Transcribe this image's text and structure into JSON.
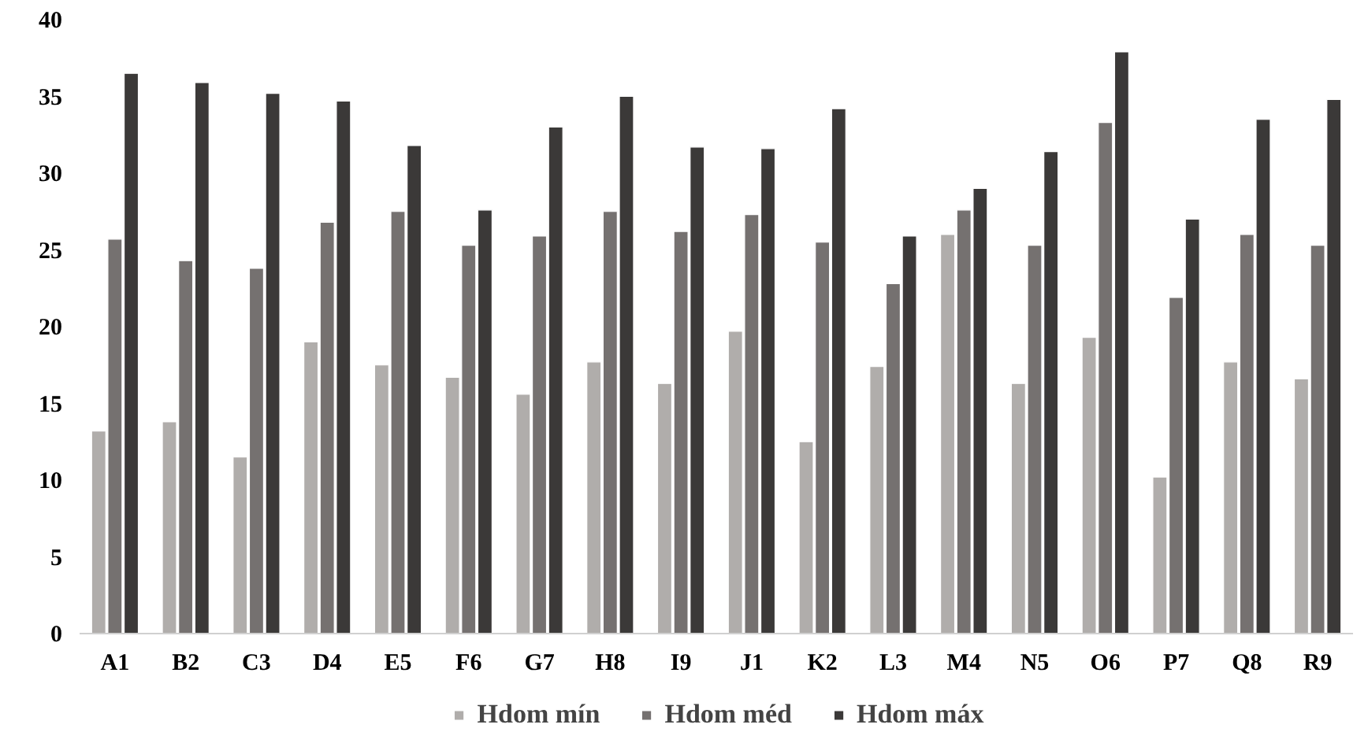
{
  "chart_data": {
    "type": "bar",
    "categories": [
      "A1",
      "B2",
      "C3",
      "D4",
      "E5",
      "F6",
      "G7",
      "H8",
      "I9",
      "J1",
      "K2",
      "L3",
      "M4",
      "N5",
      "O6",
      "P7",
      "Q8",
      "R9"
    ],
    "series": [
      {
        "name": "Hdom mín",
        "color": "#b0adab",
        "values": [
          13.2,
          13.8,
          11.5,
          19.0,
          17.5,
          16.7,
          15.6,
          17.7,
          16.3,
          19.7,
          12.5,
          17.4,
          26.0,
          16.3,
          19.3,
          10.2,
          17.7,
          16.6
        ]
      },
      {
        "name": "Hdom méd",
        "color": "#757170",
        "values": [
          25.7,
          24.3,
          23.8,
          26.8,
          27.5,
          25.3,
          25.9,
          27.5,
          26.2,
          27.3,
          25.5,
          22.8,
          27.6,
          25.3,
          33.3,
          21.9,
          26.0,
          25.3
        ]
      },
      {
        "name": "Hdom máx",
        "color": "#3b3938",
        "values": [
          36.5,
          35.9,
          35.2,
          34.7,
          31.8,
          27.6,
          33.0,
          35.0,
          31.7,
          31.6,
          34.2,
          25.9,
          29.0,
          31.4,
          37.9,
          27.0,
          33.5,
          34.8
        ]
      }
    ],
    "ylim": [
      0,
      40
    ],
    "yticks": [
      0,
      5,
      10,
      15,
      20,
      25,
      30,
      35,
      40
    ],
    "grid": false,
    "legend": "bottom"
  }
}
